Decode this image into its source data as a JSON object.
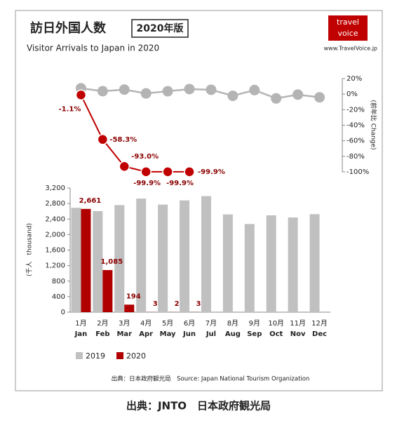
{
  "header": {
    "title": "訪日外国人数",
    "badge": "2020年版",
    "subtitle": "Visitor Arrivals to Japan in 2020",
    "logo": [
      "travel",
      "voice"
    ],
    "url": "www.TravelVoice.jp"
  },
  "chart_data": [
    {
      "type": "line",
      "y_label": "(前年比 Change)",
      "ylim": [
        -100,
        20
      ],
      "yticks": [
        {
          "value": 20,
          "label": "20%"
        },
        {
          "value": 0,
          "label": "0%"
        },
        {
          "value": -20,
          "label": "-20%"
        },
        {
          "value": -40,
          "label": "-40%"
        },
        {
          "value": -60,
          "label": "-60%"
        },
        {
          "value": -80,
          "label": "-80%"
        },
        {
          "value": -100,
          "label": "-100%"
        }
      ],
      "series": [
        {
          "color": "#b4b4b4",
          "values": [
            7.5,
            3.8,
            5.8,
            0.9,
            3.7,
            6.5,
            5.6,
            -2.2,
            5.2,
            -5.5,
            -0.6,
            -4.1
          ]
        },
        {
          "color": "#c00000",
          "values": [
            -1.1,
            -58.3,
            -93.0,
            -99.9,
            -99.9,
            -99.9,
            null,
            null,
            null,
            null,
            null,
            null
          ],
          "value_labels": [
            "-1.1%",
            "-58.3%",
            "-93.0%",
            "-99.9%",
            "-99.9%",
            "-99.9%",
            null,
            null,
            null,
            null,
            null,
            null
          ]
        }
      ]
    },
    {
      "type": "bar",
      "y_label": "(千人　thousand)",
      "categories": [
        "1月",
        "2月",
        "3月",
        "4月",
        "5月",
        "6月",
        "7月",
        "8月",
        "9月",
        "10月",
        "11月",
        "12月"
      ],
      "categories_en": [
        "Jan",
        "Feb",
        "Mar",
        "Apr",
        "May",
        "Jun",
        "Jul",
        "Aug",
        "Sep",
        "Oct",
        "Nov",
        "Dec"
      ],
      "ylim": [
        0,
        3200
      ],
      "yticks": [
        0,
        400,
        800,
        {
          "value": 1200,
          "label": "1,200"
        },
        {
          "value": 1600,
          "label": "1,600"
        },
        {
          "value": 2000,
          "label": "2,000"
        },
        {
          "value": 2400,
          "label": "2,400"
        },
        {
          "value": 2800,
          "label": "2,800"
        },
        {
          "value": 3200,
          "label": "3,200"
        }
      ],
      "series": [
        {
          "name": "2019",
          "color": "#c0c0c0",
          "values": [
            2689,
            2604,
            2760,
            2927,
            2773,
            2880,
            2991,
            2520,
            2272,
            2496,
            2441,
            2526
          ]
        },
        {
          "name": "2020",
          "color": "#b00000",
          "values": [
            2661,
            1085,
            194,
            3,
            2,
            3,
            null,
            null,
            null,
            null,
            null,
            null
          ],
          "value_labels": [
            "2,661",
            "1,085",
            "194",
            "3",
            "2",
            "3",
            null,
            null,
            null,
            null,
            null,
            null
          ]
        }
      ]
    }
  ],
  "footer": {
    "source": "出典：日本政府観光局　Source: Japan National Tourism Organization",
    "credit": "出典：JNTO　日本政府観光局"
  }
}
